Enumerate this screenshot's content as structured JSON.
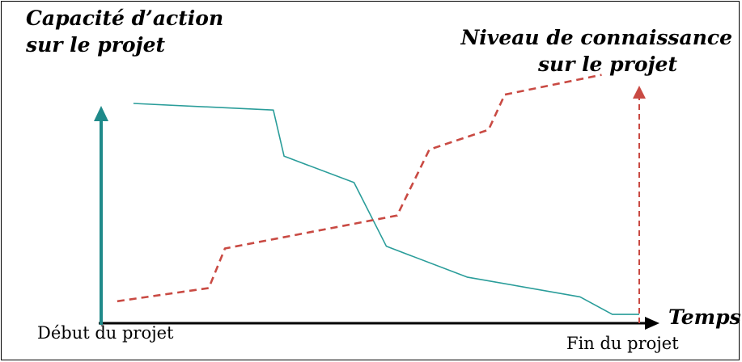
{
  "chart_data": {
    "type": "line",
    "left_axis_label": [
      "Capacité d’action",
      "sur le projet"
    ],
    "right_axis_label": [
      "Niveau de connaissance",
      "sur le projet"
    ],
    "x_axis_label": "Temps",
    "x_start_label": "Début du projet",
    "x_end_label": "Fin du projet",
    "colors": {
      "capacite": "#2a9d9a",
      "connaissance": "#c94a43",
      "left_axis": "#1f8a8a",
      "right_axis": "#c94a43",
      "x_axis": "#000000"
    },
    "series": [
      {
        "key": "capacite",
        "style": "solid",
        "points": [
          [
            0.06,
            1.0
          ],
          [
            0.32,
            0.97
          ],
          [
            0.34,
            0.76
          ],
          [
            0.47,
            0.64
          ],
          [
            0.53,
            0.35
          ],
          [
            0.68,
            0.21
          ],
          [
            0.89,
            0.12
          ],
          [
            0.95,
            0.04
          ],
          [
            1.0,
            0.04
          ]
        ]
      },
      {
        "key": "connaissance",
        "style": "dashed",
        "points": [
          [
            0.03,
            0.1
          ],
          [
            0.2,
            0.16
          ],
          [
            0.23,
            0.34
          ],
          [
            0.55,
            0.49
          ],
          [
            0.61,
            0.79
          ],
          [
            0.72,
            0.88
          ],
          [
            0.75,
            1.04
          ],
          [
            0.93,
            1.13
          ]
        ]
      }
    ]
  }
}
